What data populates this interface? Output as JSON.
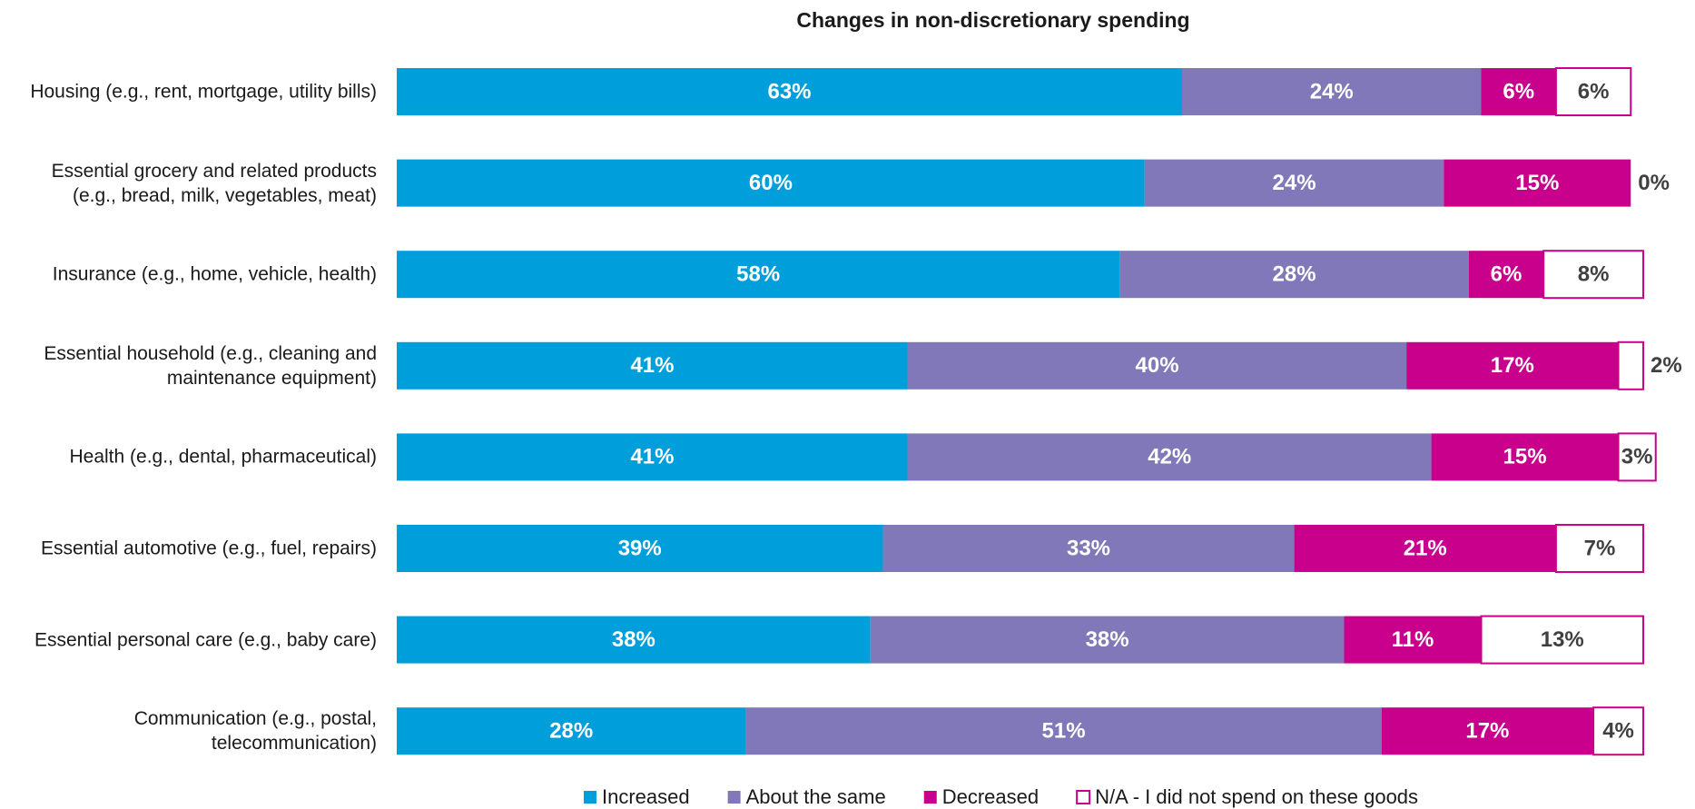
{
  "chart_data": {
    "type": "stacked_barh",
    "title": "Changes in non-discretionary spending",
    "categories": [
      "Housing (e.g., rent, mortgage, utility bills)",
      "Essential grocery and related products\n(e.g., bread, milk, vegetables, meat)",
      "Insurance (e.g., home, vehicle, health)",
      "Essential household (e.g., cleaning and\nmaintenance equipment)",
      "Health (e.g., dental, pharmaceutical)",
      "Essential automotive (e.g., fuel, repairs)",
      "Essential personal care (e.g., baby care)",
      "Communication (e.g., postal,\ntelecommunication)"
    ],
    "series": [
      {
        "name": "Increased",
        "color": "#009fdb",
        "values": [
          63,
          60,
          58,
          41,
          41,
          39,
          38,
          28
        ],
        "value_labels": [
          "63%",
          "60%",
          "58%",
          "41%",
          "41%",
          "39%",
          "38%",
          "28%"
        ]
      },
      {
        "name": "About the same",
        "color": "#8078b8",
        "values": [
          24,
          24,
          28,
          40,
          42,
          33,
          38,
          51
        ],
        "value_labels": [
          "24%",
          "24%",
          "28%",
          "40%",
          "42%",
          "33%",
          "38%",
          "51%"
        ]
      },
      {
        "name": "Decreased",
        "color": "#c8008c",
        "values": [
          6,
          15,
          6,
          17,
          15,
          21,
          11,
          17
        ],
        "value_labels": [
          "6%",
          "15%",
          "6%",
          "17%",
          "15%",
          "21%",
          "11%",
          "17%"
        ]
      },
      {
        "name": "N/A - I did not spend on these goods",
        "color": "#ffffff",
        "values": [
          6,
          0,
          8,
          2,
          3,
          7,
          13,
          4
        ],
        "value_labels": [
          "6%",
          "0%",
          "8%",
          "2%",
          "3%",
          "7%",
          "13%",
          "4%"
        ]
      }
    ],
    "xlim": [
      0,
      100
    ],
    "outline_color": "#c8008c"
  }
}
